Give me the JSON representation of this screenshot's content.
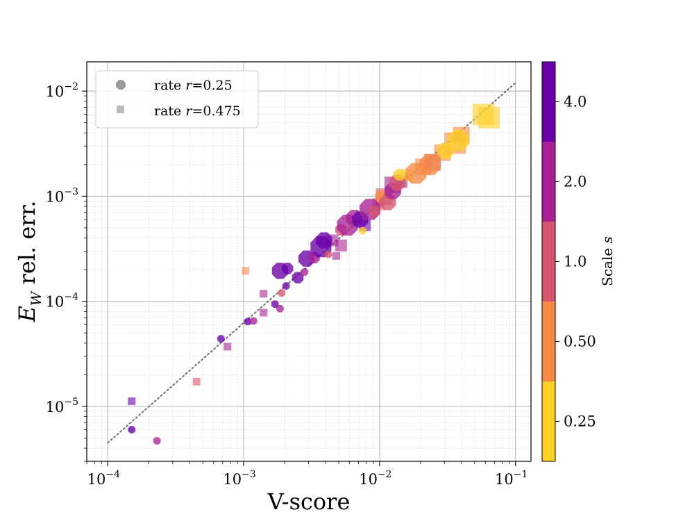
{
  "chart_data": {
    "type": "scatter",
    "xscale": "log",
    "yscale": "log",
    "xlim": [
      7e-05,
      0.13
    ],
    "ylim": [
      3e-06,
      0.019
    ],
    "grid": true,
    "xlabel": "V-score",
    "ylabel": {
      "symbol": "E",
      "subscript": "W",
      "text": " rel. err."
    },
    "x_ticks": [
      {
        "value": 0.0001,
        "base": "10",
        "exp": "−4"
      },
      {
        "value": 0.001,
        "base": "10",
        "exp": "−3"
      },
      {
        "value": 0.01,
        "base": "10",
        "exp": "−2"
      },
      {
        "value": 0.1,
        "base": "10",
        "exp": "−1"
      }
    ],
    "y_ticks": [
      {
        "value": 1e-05,
        "base": "10",
        "exp": "−5"
      },
      {
        "value": 0.0001,
        "base": "10",
        "exp": "−4"
      },
      {
        "value": 0.001,
        "base": "10",
        "exp": "−3"
      },
      {
        "value": 0.01,
        "base": "10",
        "exp": "−2"
      }
    ],
    "reference_line": {
      "style": "dotted",
      "color": "#777777",
      "from": [
        0.0001,
        4.5e-06
      ],
      "to": [
        0.1,
        0.012
      ]
    },
    "legend": {
      "position": "top-left",
      "entries": [
        {
          "marker": "octagon",
          "label_prefix": "rate ",
          "var": "r",
          "label_suffix": "=0.25"
        },
        {
          "marker": "square",
          "label_prefix": "rate ",
          "var": "r",
          "label_suffix": "=0.475"
        }
      ]
    },
    "colorbar": {
      "label": "Scale s",
      "label_prefix": "Scale ",
      "label_var": "s",
      "levels": [
        {
          "label": "0.25",
          "color": "#fccf25"
        },
        {
          "label": "0.50",
          "color": "#f58b45"
        },
        {
          "label": "1.0",
          "color": "#d6566b"
        },
        {
          "label": "2.0",
          "color": "#a82296"
        },
        {
          "label": "4.0",
          "color": "#6a00a8"
        }
      ]
    },
    "colors": {
      "0.25": "#fccf25",
      "0.50": "#f58b45",
      "1.0": "#d6566b",
      "2.0": "#a82296",
      "4.0": "#6a00a8"
    },
    "series": [
      {
        "name": "rate r=0.25",
        "marker": "octagon",
        "points": [
          {
            "x": 0.00015,
            "y": 6e-06,
            "scale": "4.0",
            "size": 1
          },
          {
            "x": 0.00023,
            "y": 4.7e-06,
            "scale": "2.0",
            "size": 1
          },
          {
            "x": 0.00068,
            "y": 4.4e-05,
            "scale": "4.0",
            "size": 1
          },
          {
            "x": 0.00107,
            "y": 6.4e-05,
            "scale": "4.0",
            "size": 1
          },
          {
            "x": 0.00118,
            "y": 6.5e-05,
            "scale": "2.0",
            "size": 1
          },
          {
            "x": 0.0017,
            "y": 9.4e-05,
            "scale": "4.0",
            "size": 1
          },
          {
            "x": 0.00185,
            "y": 8.5e-05,
            "scale": "2.0",
            "size": 1
          },
          {
            "x": 0.0019,
            "y": 0.00012,
            "scale": "1.0",
            "size": 1
          },
          {
            "x": 0.00205,
            "y": 0.00014,
            "scale": "4.0",
            "size": 1
          },
          {
            "x": 0.00185,
            "y": 0.000195,
            "scale": "4.0",
            "size": 3
          },
          {
            "x": 0.0021,
            "y": 0.000205,
            "scale": "4.0",
            "size": 2
          },
          {
            "x": 0.0025,
            "y": 0.000168,
            "scale": "4.0",
            "size": 2
          },
          {
            "x": 0.0028,
            "y": 0.00019,
            "scale": "2.0",
            "size": 1
          },
          {
            "x": 0.0029,
            "y": 0.000255,
            "scale": "4.0",
            "size": 3
          },
          {
            "x": 0.0033,
            "y": 0.00026,
            "scale": "2.0",
            "size": 2
          },
          {
            "x": 0.0037,
            "y": 0.00033,
            "scale": "4.0",
            "size": 4
          },
          {
            "x": 0.0039,
            "y": 0.00038,
            "scale": "4.0",
            "size": 3
          },
          {
            "x": 0.0042,
            "y": 0.00028,
            "scale": "1.0",
            "size": 1
          },
          {
            "x": 0.0052,
            "y": 0.00048,
            "scale": "1.0",
            "size": 2
          },
          {
            "x": 0.0058,
            "y": 0.00053,
            "scale": "2.0",
            "size": 4
          },
          {
            "x": 0.0065,
            "y": 0.00062,
            "scale": "2.0",
            "size": 3
          },
          {
            "x": 0.0072,
            "y": 0.0006,
            "scale": "4.0",
            "size": 3
          },
          {
            "x": 0.0075,
            "y": 0.00047,
            "scale": "0.25",
            "size": 1
          },
          {
            "x": 0.0085,
            "y": 0.00075,
            "scale": "2.0",
            "size": 4
          },
          {
            "x": 0.0092,
            "y": 0.00072,
            "scale": "1.0",
            "size": 2
          },
          {
            "x": 0.0102,
            "y": 0.001,
            "scale": "0.50",
            "size": 2
          },
          {
            "x": 0.0115,
            "y": 0.00088,
            "scale": "1.0",
            "size": 3
          },
          {
            "x": 0.0125,
            "y": 0.00112,
            "scale": "2.0",
            "size": 3
          },
          {
            "x": 0.0135,
            "y": 0.00135,
            "scale": "1.0",
            "size": 3
          },
          {
            "x": 0.014,
            "y": 0.0016,
            "scale": "0.25",
            "size": 2
          },
          {
            "x": 0.0185,
            "y": 0.00165,
            "scale": "0.50",
            "size": 4
          },
          {
            "x": 0.0235,
            "y": 0.002,
            "scale": "0.50",
            "size": 4
          },
          {
            "x": 0.0305,
            "y": 0.0027,
            "scale": "0.25",
            "size": 3
          },
          {
            "x": 0.038,
            "y": 0.0034,
            "scale": "0.25",
            "size": 4
          }
        ]
      },
      {
        "name": "rate r=0.475",
        "marker": "square",
        "points": [
          {
            "x": 0.00015,
            "y": 1.12e-05,
            "scale": "4.0",
            "size": 1
          },
          {
            "x": 0.00045,
            "y": 1.72e-05,
            "scale": "1.0",
            "size": 1
          },
          {
            "x": 0.00076,
            "y": 3.7e-05,
            "scale": "2.0",
            "size": 1
          },
          {
            "x": 0.00103,
            "y": 0.000195,
            "scale": "0.50",
            "size": 1
          },
          {
            "x": 0.0014,
            "y": 0.000118,
            "scale": "2.0",
            "size": 1
          },
          {
            "x": 0.0014,
            "y": 7.8e-05,
            "scale": "2.0",
            "size": 1
          },
          {
            "x": 0.0045,
            "y": 0.00038,
            "scale": "2.0",
            "size": 2
          },
          {
            "x": 0.0048,
            "y": 0.00027,
            "scale": "2.0",
            "size": 1
          },
          {
            "x": 0.0052,
            "y": 0.00034,
            "scale": "2.0",
            "size": 2
          },
          {
            "x": 0.0078,
            "y": 0.00053,
            "scale": "4.0",
            "size": 2
          },
          {
            "x": 0.0098,
            "y": 0.00084,
            "scale": "1.0",
            "size": 2
          },
          {
            "x": 0.0108,
            "y": 0.00099,
            "scale": "1.0",
            "size": 3
          },
          {
            "x": 0.0125,
            "y": 0.00128,
            "scale": "2.0",
            "size": 3
          },
          {
            "x": 0.0145,
            "y": 0.00137,
            "scale": "2.0",
            "size": 2
          },
          {
            "x": 0.016,
            "y": 0.00158,
            "scale": "0.25",
            "size": 2
          },
          {
            "x": 0.021,
            "y": 0.0019,
            "scale": "0.50",
            "size": 3
          },
          {
            "x": 0.0245,
            "y": 0.0021,
            "scale": "1.0",
            "size": 3
          },
          {
            "x": 0.029,
            "y": 0.0026,
            "scale": "0.50",
            "size": 3
          },
          {
            "x": 0.036,
            "y": 0.0032,
            "scale": "0.50",
            "size": 4
          },
          {
            "x": 0.04,
            "y": 0.0038,
            "scale": "0.50",
            "size": 3
          },
          {
            "x": 0.058,
            "y": 0.006,
            "scale": "0.25",
            "size": 4
          },
          {
            "x": 0.064,
            "y": 0.0056,
            "scale": "0.25",
            "size": 4
          }
        ]
      }
    ]
  }
}
